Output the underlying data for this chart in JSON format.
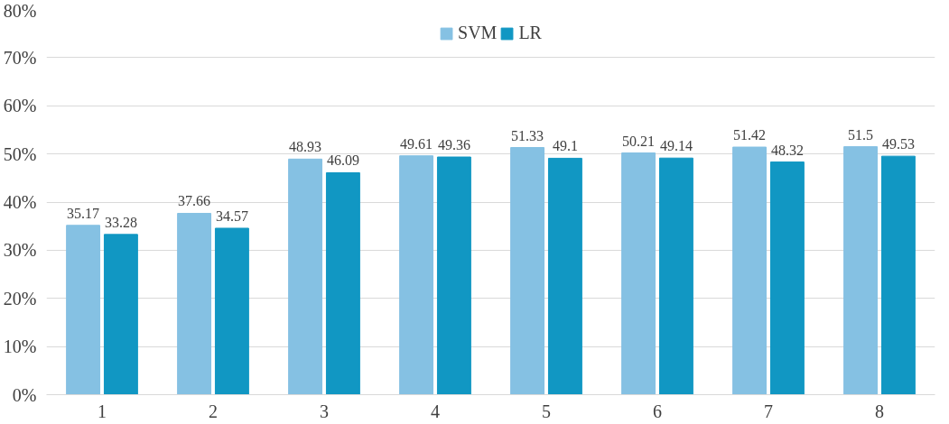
{
  "chart_data": {
    "type": "bar",
    "categories": [
      "1",
      "2",
      "3",
      "4",
      "5",
      "6",
      "7",
      "8"
    ],
    "series": [
      {
        "name": "SVM",
        "color": "#85c1e3",
        "values": [
          35.17,
          37.66,
          48.93,
          49.61,
          51.33,
          50.21,
          51.42,
          51.5
        ]
      },
      {
        "name": "LR",
        "color": "#1197c3",
        "values": [
          33.28,
          34.57,
          46.09,
          49.36,
          49.1,
          49.14,
          48.32,
          49.53
        ]
      }
    ],
    "ylim": [
      0,
      80
    ],
    "yticks": [
      {
        "value": 0,
        "label": "0%"
      },
      {
        "value": 10,
        "label": "10%"
      },
      {
        "value": 20,
        "label": "20%"
      },
      {
        "value": 30,
        "label": "30%"
      },
      {
        "value": 40,
        "label": "40%"
      },
      {
        "value": 50,
        "label": "50%"
      },
      {
        "value": 60,
        "label": "60%"
      },
      {
        "value": 70,
        "label": "70%"
      },
      {
        "value": 80,
        "label": "80%"
      }
    ],
    "grid": "y",
    "legend": "top",
    "data_labels": true
  }
}
